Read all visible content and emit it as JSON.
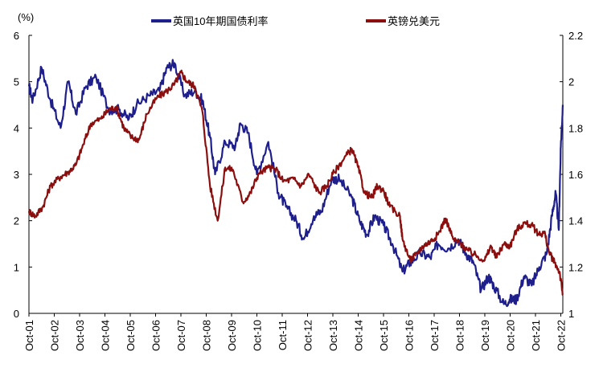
{
  "chart_data": {
    "type": "line",
    "title": "",
    "xlabel": "",
    "y_unit_label": "(%)",
    "ylim": [
      0,
      6
    ],
    "y2lim": [
      1,
      2.2
    ],
    "y_ticks": [
      0,
      1,
      2,
      3,
      4,
      5,
      6
    ],
    "y_tick_labels": [
      "0",
      "1",
      "2",
      "3",
      "4",
      "5",
      "6"
    ],
    "y2_ticks": [
      1,
      1.2,
      1.4,
      1.6,
      1.8,
      2,
      2.2
    ],
    "y2_tick_labels": [
      "1",
      "1.2",
      "1.4",
      "1.6",
      "1.8",
      "2",
      "2.2"
    ],
    "x_range": [
      2001.75,
      2022.83
    ],
    "x_ticks": [
      2001.75,
      2002.75,
      2003.75,
      2004.75,
      2005.75,
      2006.75,
      2007.75,
      2008.75,
      2009.75,
      2010.75,
      2011.75,
      2012.75,
      2013.75,
      2014.75,
      2015.75,
      2016.75,
      2017.75,
      2018.75,
      2019.75,
      2020.75,
      2021.75,
      2022.75
    ],
    "categories": [
      "Oct-01",
      "Oct-02",
      "Oct-03",
      "Oct-04",
      "Oct-05",
      "Oct-06",
      "Oct-07",
      "Oct-08",
      "Oct-09",
      "Oct-10",
      "Oct-11",
      "Oct-12",
      "Oct-13",
      "Oct-14",
      "Oct-15",
      "Oct-16",
      "Oct-17",
      "Oct-18",
      "Oct-19",
      "Oct-20",
      "Oct-21",
      "Oct-22"
    ],
    "legend_position": "top-center",
    "series": [
      {
        "name": "英国10年期国债利率",
        "axis": "left",
        "color": "#1f1f8c",
        "x": [
          2001.75,
          2001.9,
          2002.25,
          2002.6,
          2003.0,
          2003.3,
          2003.6,
          2004.0,
          2004.4,
          2004.9,
          2005.3,
          2005.7,
          2006.0,
          2006.5,
          2006.9,
          2007.2,
          2007.5,
          2007.9,
          2008.3,
          2008.6,
          2008.9,
          2009.1,
          2009.5,
          2009.9,
          2010.1,
          2010.4,
          2010.75,
          2011.2,
          2011.6,
          2011.9,
          2012.3,
          2012.6,
          2013.0,
          2013.3,
          2013.7,
          2014.0,
          2014.5,
          2014.8,
          2015.1,
          2015.4,
          2015.75,
          2016.1,
          2016.5,
          2016.8,
          2017.2,
          2017.6,
          2017.9,
          2018.3,
          2018.7,
          2019.0,
          2019.3,
          2019.6,
          2019.9,
          2020.1,
          2020.5,
          2020.75,
          2021.0,
          2021.3,
          2021.6,
          2021.9,
          2022.2,
          2022.4,
          2022.55,
          2022.67,
          2022.75,
          2022.83
        ],
        "values": [
          4.9,
          4.6,
          5.3,
          4.6,
          4.0,
          5.0,
          4.3,
          4.9,
          5.1,
          4.4,
          4.4,
          4.2,
          4.5,
          4.7,
          4.8,
          5.3,
          5.4,
          4.7,
          4.8,
          4.6,
          3.8,
          3.0,
          3.7,
          3.6,
          4.1,
          3.9,
          3.0,
          3.7,
          2.6,
          2.3,
          2.0,
          1.6,
          2.1,
          2.2,
          2.9,
          2.9,
          2.5,
          2.0,
          1.7,
          2.1,
          1.9,
          1.5,
          0.9,
          1.1,
          1.3,
          1.2,
          1.5,
          1.4,
          1.6,
          1.3,
          1.1,
          0.5,
          0.8,
          0.6,
          0.2,
          0.3,
          0.3,
          0.8,
          0.6,
          1.0,
          1.3,
          2.1,
          2.6,
          1.8,
          3.6,
          4.5
        ]
      },
      {
        "name": "英镑兑美元",
        "axis": "right",
        "color": "#8b0f0f",
        "x": [
          2001.75,
          2002.0,
          2002.3,
          2002.6,
          2003.0,
          2003.3,
          2003.6,
          2003.9,
          2004.2,
          2004.6,
          2004.9,
          2005.2,
          2005.5,
          2005.8,
          2006.1,
          2006.4,
          2006.8,
          2007.2,
          2007.5,
          2007.75,
          2008.0,
          2008.3,
          2008.6,
          2008.9,
          2009.2,
          2009.5,
          2009.8,
          2010.2,
          2010.5,
          2010.8,
          2011.2,
          2011.5,
          2011.8,
          2012.2,
          2012.5,
          2012.8,
          2013.2,
          2013.5,
          2013.8,
          2014.2,
          2014.5,
          2014.75,
          2015.0,
          2015.3,
          2015.5,
          2015.75,
          2016.0,
          2016.4,
          2016.5,
          2016.8,
          2017.0,
          2017.3,
          2017.6,
          2017.9,
          2018.2,
          2018.5,
          2018.8,
          2019.1,
          2019.4,
          2019.75,
          2020.0,
          2020.2,
          2020.5,
          2020.75,
          2021.0,
          2021.3,
          2021.6,
          2021.9,
          2022.1,
          2022.3,
          2022.5,
          2022.7,
          2022.83
        ],
        "values": [
          1.44,
          1.42,
          1.46,
          1.55,
          1.59,
          1.61,
          1.64,
          1.73,
          1.82,
          1.84,
          1.88,
          1.89,
          1.8,
          1.76,
          1.75,
          1.86,
          1.93,
          1.96,
          1.99,
          2.04,
          2.0,
          1.98,
          1.87,
          1.55,
          1.4,
          1.63,
          1.62,
          1.48,
          1.52,
          1.6,
          1.63,
          1.62,
          1.57,
          1.58,
          1.55,
          1.6,
          1.52,
          1.55,
          1.61,
          1.67,
          1.71,
          1.63,
          1.52,
          1.5,
          1.55,
          1.53,
          1.46,
          1.42,
          1.32,
          1.23,
          1.25,
          1.29,
          1.31,
          1.34,
          1.41,
          1.32,
          1.3,
          1.27,
          1.25,
          1.23,
          1.29,
          1.24,
          1.3,
          1.29,
          1.36,
          1.39,
          1.38,
          1.34,
          1.35,
          1.26,
          1.22,
          1.18,
          1.08
        ]
      }
    ]
  }
}
